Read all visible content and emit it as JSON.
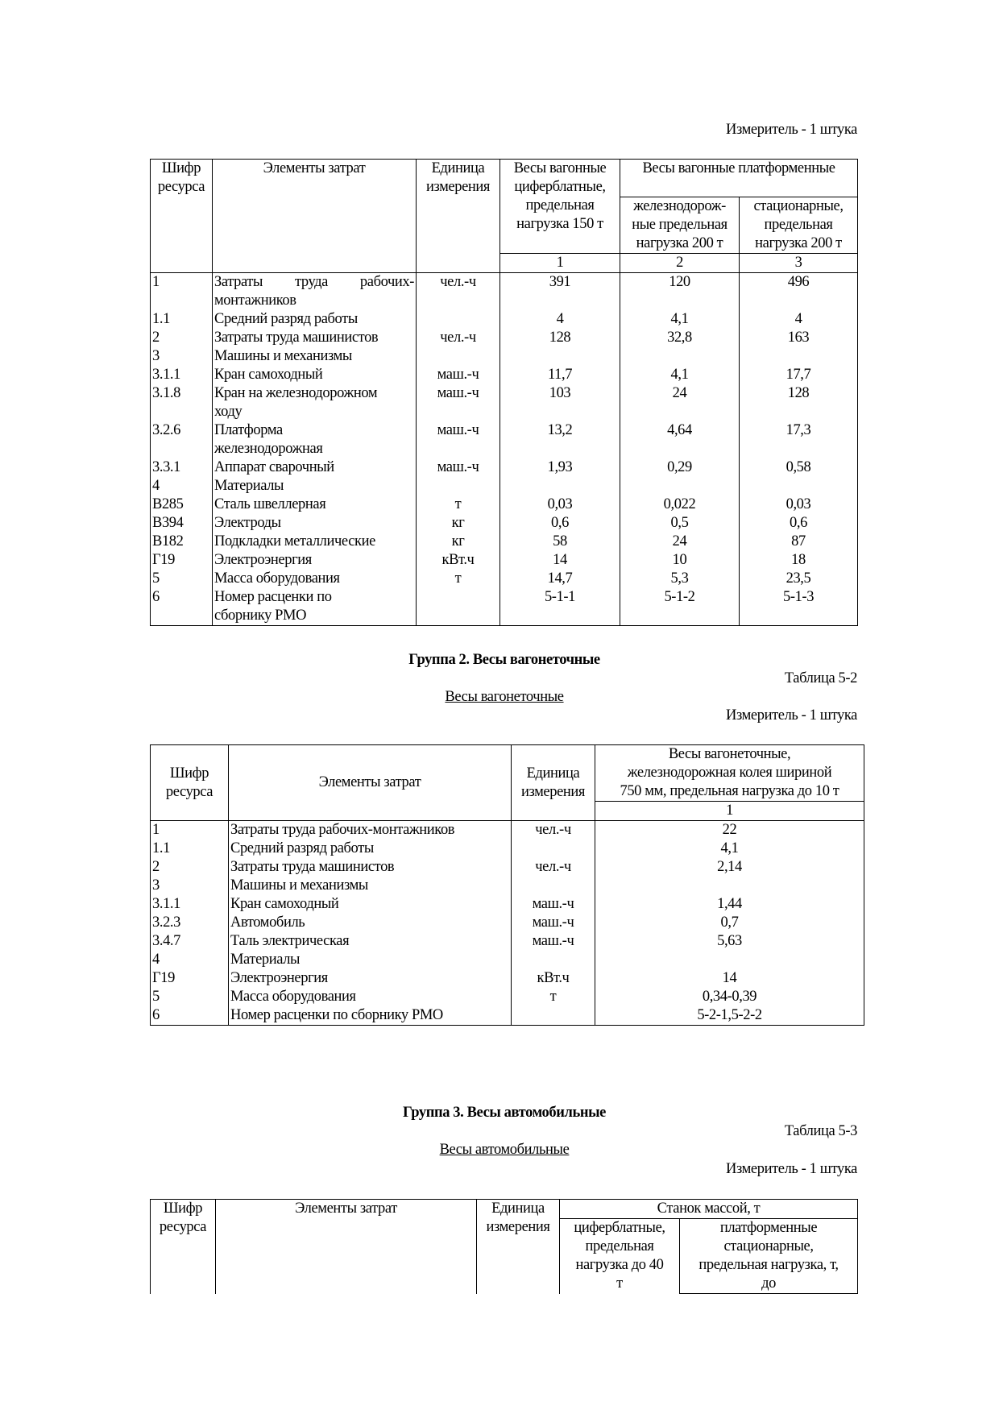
{
  "table1": {
    "measure": "Измеритель - 1 штука",
    "headers": {
      "code": "Шифр\nресурса",
      "elements": "Элементы затрат",
      "unit": "Единица\nизмерения",
      "col1": "Весы вагонные\nциферблатные,\nпредельная\nнагрузка 150 т",
      "platform": "Весы вагонные платформенные",
      "col2": "железнодорож-\nные предельная\nнагрузка 200 т",
      "col3": "стационарные,\nпредельная\nнагрузка 200 т",
      "num1": "1",
      "num2": "2",
      "num3": "3"
    },
    "rows": [
      {
        "code": "1",
        "name": "Затраты труда рабочих-\nмонтажников",
        "unit": "чел.-ч",
        "v1": "391",
        "v2": "120",
        "v3": "496"
      },
      {
        "code": "1.1",
        "name": "Средний разряд работы",
        "unit": "",
        "v1": "4",
        "v2": "4,1",
        "v3": "4"
      },
      {
        "code": "2",
        "name": "Затраты труда машинистов",
        "unit": "чел.-ч",
        "v1": "128",
        "v2": "32,8",
        "v3": "163"
      },
      {
        "code": "3",
        "name": "Машины и механизмы",
        "unit": "",
        "v1": "",
        "v2": "",
        "v3": ""
      },
      {
        "code": "3.1.1",
        "name": "Кран самоходный",
        "unit": "маш.-ч",
        "v1": "11,7",
        "v2": "4,1",
        "v3": "17,7"
      },
      {
        "code": "3.1.8",
        "name": "Кран на железнодорожном\nходу",
        "unit": "маш.-ч",
        "v1": "103",
        "v2": "24",
        "v3": "128"
      },
      {
        "code": "3.2.6",
        "name": "Платформа\nжелезнодорожная",
        "unit": "маш.-ч",
        "v1": "13,2",
        "v2": "4,64",
        "v3": "17,3"
      },
      {
        "code": "3.3.1",
        "name": "Аппарат сварочный",
        "unit": "маш.-ч",
        "v1": "1,93",
        "v2": "0,29",
        "v3": "0,58"
      },
      {
        "code": "4",
        "name": "Материалы",
        "unit": "",
        "v1": "",
        "v2": "",
        "v3": ""
      },
      {
        "code": "В285",
        "name": "Сталь швеллерная",
        "unit": "т",
        "v1": "0,03",
        "v2": "0,022",
        "v3": "0,03"
      },
      {
        "code": "В394",
        "name": "Электроды",
        "unit": "кг",
        "v1": "0,6",
        "v2": "0,5",
        "v3": "0,6"
      },
      {
        "code": "В182",
        "name": "Подкладки металлические",
        "unit": "кг",
        "v1": "58",
        "v2": "24",
        "v3": "87"
      },
      {
        "code": "Г19",
        "name": "Электроэнергия",
        "unit": "кВт.ч",
        "v1": "14",
        "v2": "10",
        "v3": "18"
      },
      {
        "code": "5",
        "name": "Масса оборудования",
        "unit": "т",
        "v1": "14,7",
        "v2": "5,3",
        "v3": "23,5"
      },
      {
        "code": "6",
        "name": "Номер расценки по\nсборнику РМО",
        "unit": "",
        "v1": "5-1-1",
        "v2": "5-1-2",
        "v3": "5-1-3"
      }
    ]
  },
  "group2": {
    "title": "Группа 2. Весы вагонеточные",
    "table_no": "Таблица 5-2",
    "subtitle": "Весы вагонеточные",
    "measure": "Измеритель - 1 штука",
    "headers": {
      "code": "Шифр\nресурса",
      "elements": "Элементы затрат",
      "unit": "Единица\nизмерения",
      "col1": "Весы вагонеточные,\nжелезнодорожная колея шириной\n750 мм, предельная нагрузка до 10 т",
      "num1": "1"
    },
    "rows": [
      {
        "code": "1",
        "name": "Затраты труда рабочих-монтажников",
        "unit": "чел.-ч",
        "v1": "22"
      },
      {
        "code": "1.1",
        "name": "Средний разряд работы",
        "unit": "",
        "v1": "4,1"
      },
      {
        "code": "2",
        "name": "Затраты труда машинистов",
        "unit": "чел.-ч",
        "v1": "2,14"
      },
      {
        "code": "3",
        "name": "Машины и механизмы",
        "unit": "",
        "v1": ""
      },
      {
        "code": "3.1.1",
        "name": "Кран самоходный",
        "unit": "маш.-ч",
        "v1": "1,44"
      },
      {
        "code": "3.2.3",
        "name": "Автомобиль",
        "unit": "маш.-ч",
        "v1": "0,7"
      },
      {
        "code": "3.4.7",
        "name": "Таль электрическая",
        "unit": "маш.-ч",
        "v1": "5,63"
      },
      {
        "code": "4",
        "name": "Материалы",
        "unit": "",
        "v1": ""
      },
      {
        "code": "Г19",
        "name": "Электроэнергия",
        "unit": "кВт.ч",
        "v1": "14"
      },
      {
        "code": "5",
        "name": "Масса оборудования",
        "unit": "т",
        "v1": "0,34-0,39"
      },
      {
        "code": "6",
        "name": "Номер расценки по сборнику РМО",
        "unit": "",
        "v1": "5-2-1,5-2-2"
      }
    ]
  },
  "group3": {
    "title": "Группа 3. Весы автомобильные",
    "table_no": "Таблица 5-3",
    "subtitle": "Весы автомобильные",
    "measure": "Измеритель - 1 штука",
    "headers": {
      "code": "Шифр\nресурса",
      "elements": "Элементы затрат",
      "unit": "Единица\nизмерения",
      "machine": "Станок массой, т",
      "col1": "циферблатные,\nпредельная\nнагрузка до 40\nт",
      "col2": "платформенные\nстационарные,\nпредельная нагрузка, т,\nдо"
    }
  }
}
